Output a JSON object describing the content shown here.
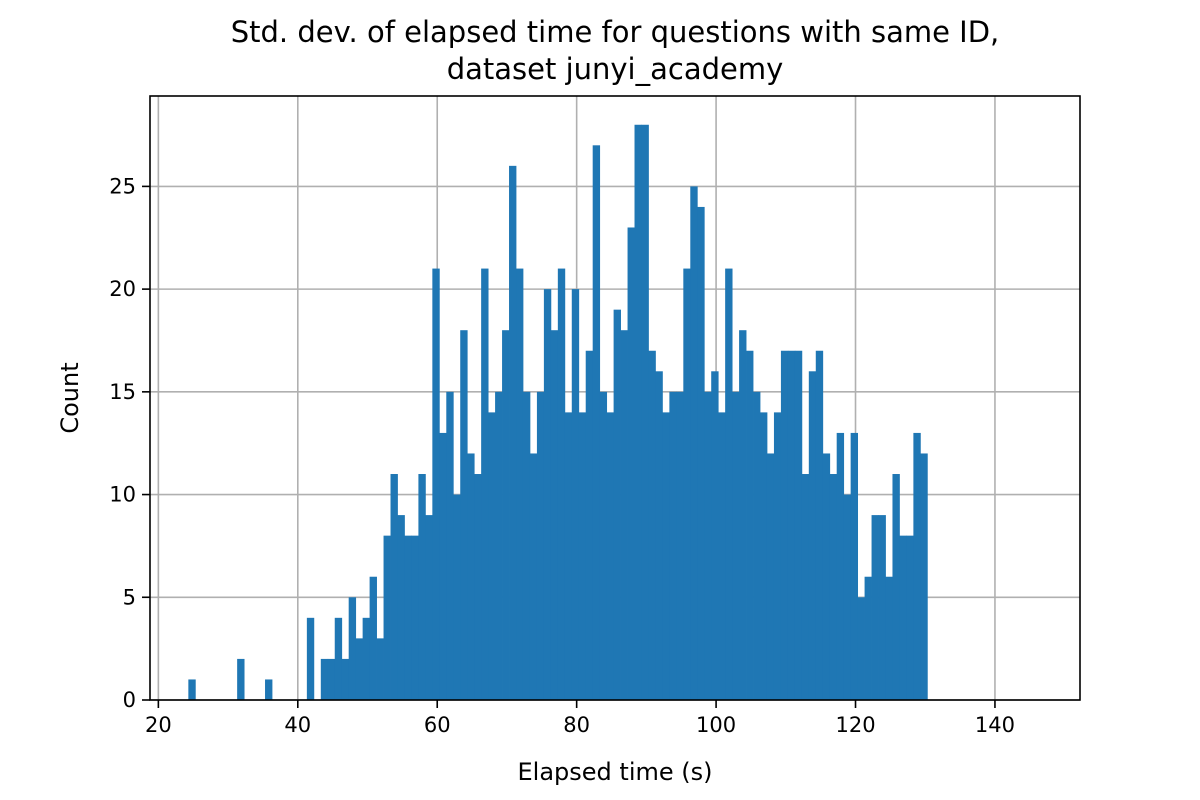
{
  "chart_data": {
    "type": "bar",
    "title_line1": "Std. dev. of elapsed time for questions with same ID,",
    "title_line2": "dataset junyi_academy",
    "xlabel": "Elapsed time (s)",
    "ylabel": "Count",
    "xlim": [
      18.8,
      152.2
    ],
    "ylim": [
      0,
      29.4
    ],
    "xticks": [
      20,
      40,
      60,
      80,
      100,
      120,
      140
    ],
    "yticks": [
      0,
      5,
      10,
      15,
      20,
      25
    ],
    "grid": true,
    "bar_color": "#1f77b4",
    "bin_start": 22.3,
    "bin_width": 1.0,
    "counts": [
      0,
      0,
      1,
      0,
      0,
      0,
      0,
      0,
      0,
      2,
      0,
      0,
      0,
      1,
      0,
      0,
      0,
      0,
      0,
      4,
      0,
      2,
      2,
      4,
      2,
      5,
      3,
      4,
      6,
      3,
      8,
      11,
      9,
      8,
      8,
      11,
      9,
      21,
      13,
      15,
      10,
      18,
      12,
      11,
      21,
      14,
      15,
      18,
      26,
      21,
      15,
      12,
      15,
      20,
      18,
      21,
      14,
      20,
      14,
      17,
      27,
      15,
      14,
      19,
      18,
      23,
      28,
      28,
      17,
      16,
      14,
      15,
      15,
      21,
      25,
      24,
      15,
      16,
      14,
      21,
      15,
      18,
      17,
      15,
      14,
      12,
      14,
      17,
      17,
      17,
      11,
      16,
      17,
      12,
      11,
      13,
      10,
      13,
      5,
      6,
      9,
      9,
      6,
      11,
      8,
      8,
      13,
      12
    ]
  }
}
